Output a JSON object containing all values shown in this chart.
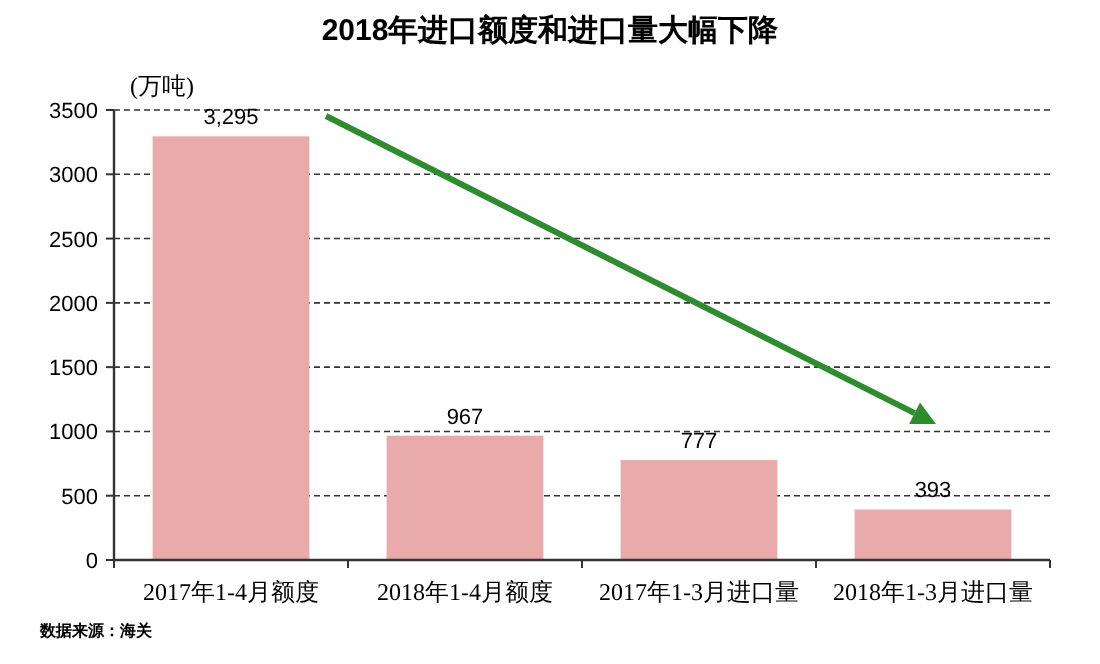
{
  "chart_data": {
    "type": "bar",
    "title": "2018年进口额度和进口量大幅下降",
    "ylabel": "(万吨)",
    "categories": [
      "2017年1-4月额度",
      "2018年1-4月额度",
      "2017年1-3月进口量",
      "2018年1-3月进口量"
    ],
    "values": [
      3295,
      967,
      777,
      393
    ],
    "value_labels": [
      "3,295",
      "967",
      "777",
      "393"
    ],
    "color": "#e9aaaa",
    "ylim": [
      0,
      3500
    ],
    "yticks": [
      0,
      500,
      1000,
      1500,
      2000,
      2500,
      3000,
      3500
    ],
    "grid": "y",
    "line_style": "dashed",
    "annotations": [
      "数据来源：海关"
    ]
  }
}
